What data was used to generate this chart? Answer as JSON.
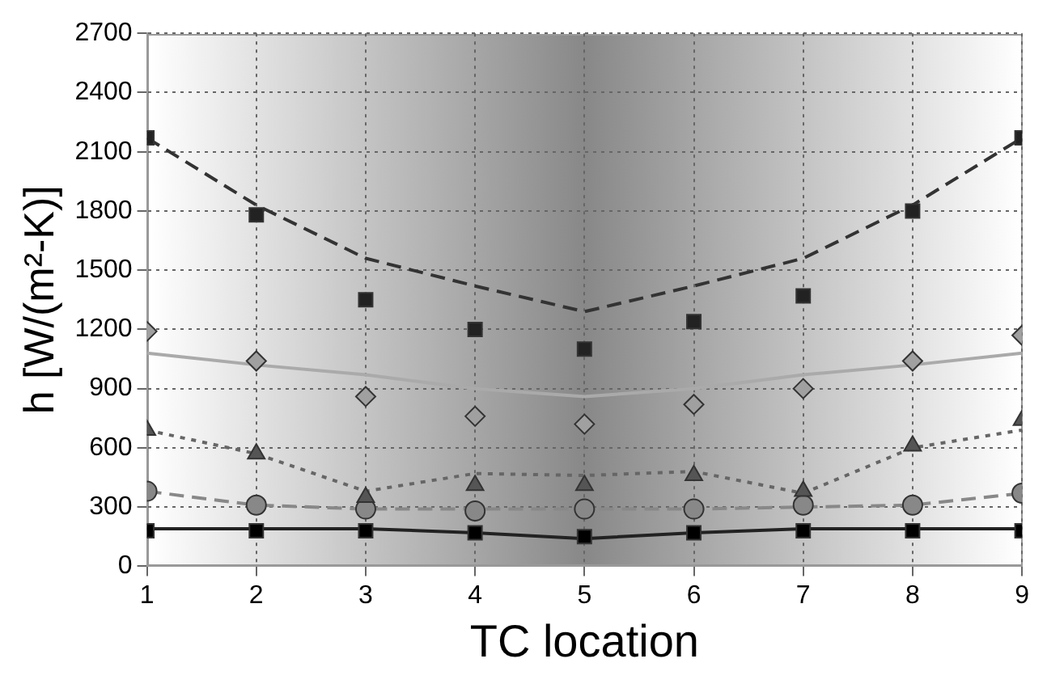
{
  "chart_data": {
    "type": "scatter",
    "xlabel": "TC location",
    "ylabel": "h [W/(m²-K)]",
    "x": [
      1,
      2,
      3,
      4,
      5,
      6,
      7,
      8,
      9
    ],
    "series": [
      {
        "type": "scatter",
        "marker": "square",
        "color": "#222222",
        "values": [
          2170,
          1780,
          1350,
          1200,
          1100,
          1240,
          1370,
          1800,
          2170
        ]
      },
      {
        "type": "line",
        "marker": "none",
        "line_style": "dashed",
        "color": "#333333",
        "values": [
          2170,
          1830,
          1560,
          1420,
          1290,
          1420,
          1560,
          1830,
          2170
        ]
      },
      {
        "type": "scatter",
        "marker": "diamond",
        "color": "#a0a0a0",
        "values": [
          1190,
          1040,
          860,
          760,
          720,
          820,
          900,
          1040,
          1170
        ]
      },
      {
        "type": "line",
        "marker": "none",
        "line_style": "solid",
        "color": "#aaaaaa",
        "values": [
          1080,
          1020,
          970,
          900,
          860,
          900,
          970,
          1020,
          1080
        ]
      },
      {
        "type": "scatter",
        "marker": "triangle",
        "color": "#555555",
        "values": [
          690,
          570,
          350,
          410,
          410,
          460,
          380,
          610,
          740
        ]
      },
      {
        "type": "line",
        "marker": "none",
        "line_style": "dotted",
        "color": "#666666",
        "values": [
          690,
          570,
          380,
          470,
          460,
          480,
          370,
          600,
          690
        ]
      },
      {
        "type": "scatter",
        "marker": "circle",
        "color": "#888888",
        "values": [
          380,
          310,
          290,
          280,
          290,
          290,
          310,
          310,
          370
        ]
      },
      {
        "type": "line",
        "marker": "none",
        "line_style": "dashed",
        "color": "#888888",
        "values": [
          380,
          310,
          290,
          290,
          290,
          290,
          300,
          310,
          370
        ]
      },
      {
        "type": "scatter",
        "marker": "square",
        "color": "#000000",
        "values": [
          180,
          180,
          180,
          170,
          150,
          170,
          180,
          180,
          180
        ]
      },
      {
        "type": "line",
        "marker": "none",
        "line_style": "solid",
        "color": "#222222",
        "values": [
          190,
          190,
          190,
          170,
          140,
          170,
          190,
          190,
          190
        ]
      }
    ],
    "xlim": [
      1,
      9
    ],
    "xticks": [
      1,
      2,
      3,
      4,
      5,
      6,
      7,
      8,
      9
    ],
    "ylim": [
      0,
      2700
    ],
    "yticks": [
      0,
      300,
      600,
      900,
      1200,
      1500,
      1800,
      2100,
      2400,
      2700
    ],
    "grid": true,
    "legend": false
  }
}
